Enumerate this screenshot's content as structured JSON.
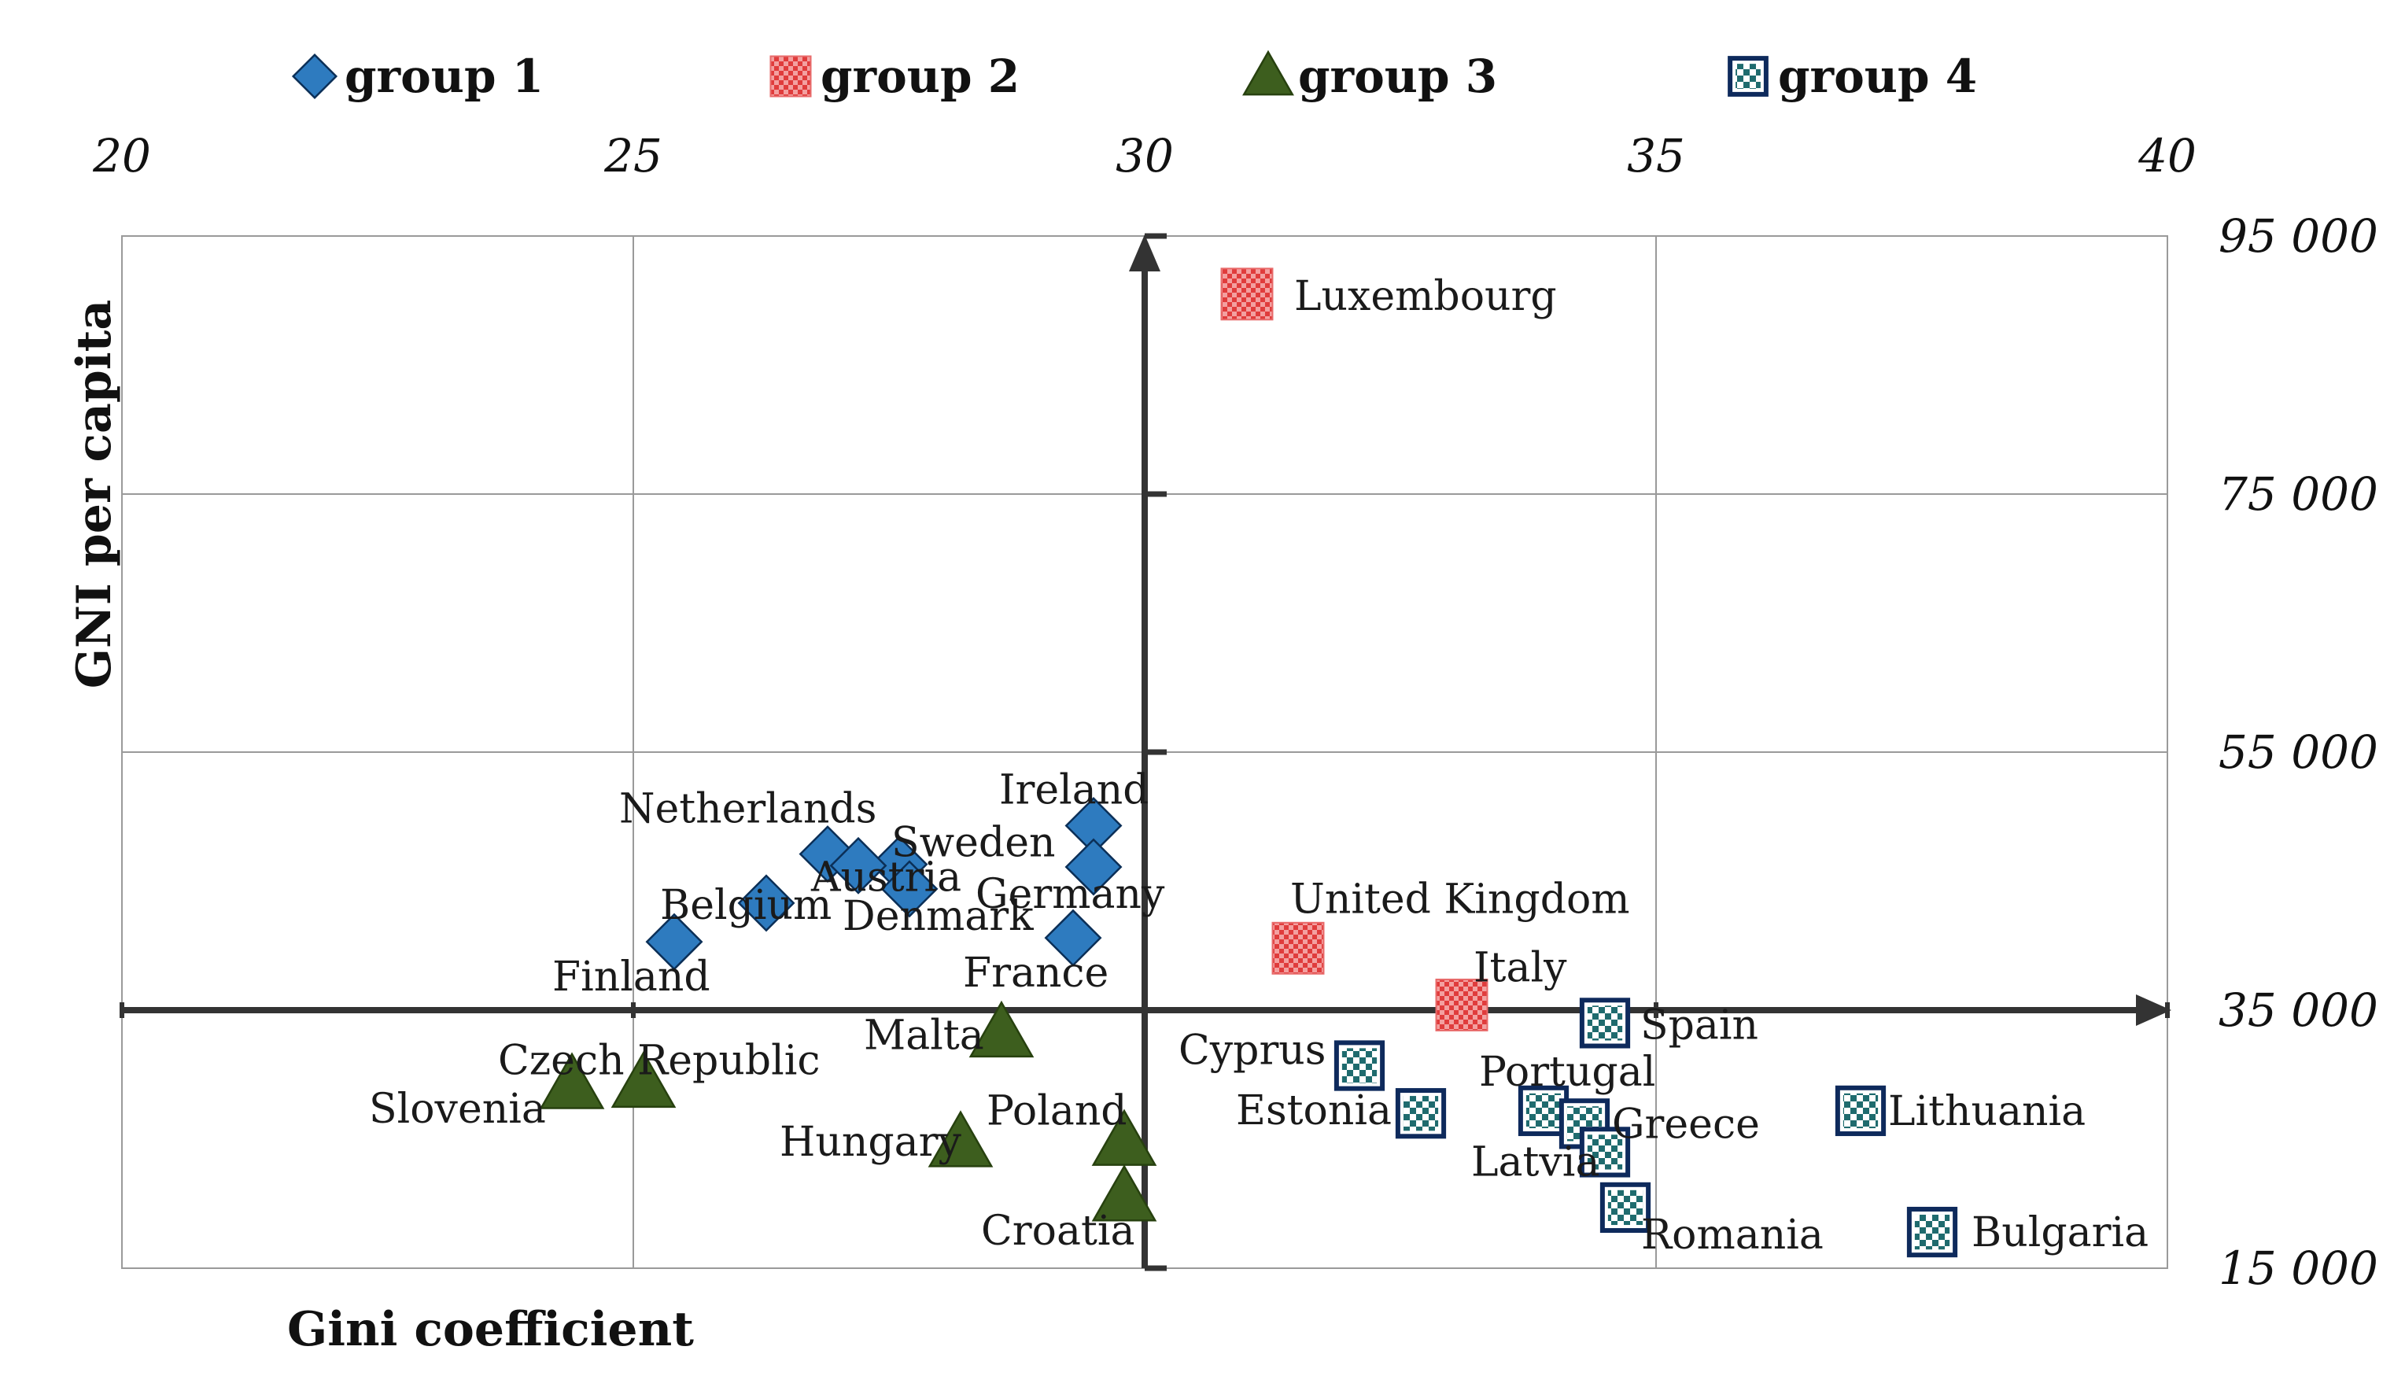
{
  "chart_data": {
    "type": "scatter",
    "xlabel": "Gini coefficient",
    "ylabel": "GNI per capita",
    "xlim": [
      20,
      40
    ],
    "ylim": [
      15000,
      95000
    ],
    "x_ticks": [
      "20",
      "25",
      "30",
      "35",
      "40"
    ],
    "y_ticks": [
      "95 000",
      "75 000",
      "55 000",
      "35 000"
    ],
    "y_tick_values": [
      95000,
      75000,
      55000,
      35000
    ],
    "y_bottom_tick": "15 000",
    "x_ticks_position": "top",
    "y_ticks_position": "right",
    "grid": true,
    "quadrant_axes": {
      "x": 30,
      "y": 35000
    },
    "legend_position": "top",
    "series": [
      {
        "name": "group 1",
        "marker": "diamond",
        "color": "#2e7bbf",
        "points": [
          {
            "label": "Ireland",
            "x": 29.5,
            "y": 49300
          },
          {
            "label": "Netherlands",
            "x": 26.9,
            "y": 47100
          },
          {
            "label": "Sweden",
            "x": 27.6,
            "y": 46300
          },
          {
            "label": "Austria",
            "x": 27.2,
            "y": 46200
          },
          {
            "label": "Germany",
            "x": 29.5,
            "y": 46100
          },
          {
            "label": "Denmark",
            "x": 27.7,
            "y": 44400
          },
          {
            "label": "Belgium",
            "x": 26.3,
            "y": 43300
          },
          {
            "label": "France",
            "x": 29.3,
            "y": 40600
          },
          {
            "label": "Finland",
            "x": 25.4,
            "y": 40300
          }
        ]
      },
      {
        "name": "group 2",
        "marker": "checker-red",
        "color": "#e05050",
        "points": [
          {
            "label": "Luxembourg",
            "x": 31.0,
            "y": 90500
          },
          {
            "label": "United Kingdom",
            "x": 31.5,
            "y": 39800
          },
          {
            "label": "Italy",
            "x": 33.1,
            "y": 35400
          }
        ]
      },
      {
        "name": "group 3",
        "marker": "triangle",
        "color": "#3d5e1e",
        "points": [
          {
            "label": "Malta",
            "x": 28.6,
            "y": 33200
          },
          {
            "label": "Czech Republic",
            "x": 25.1,
            "y": 29300
          },
          {
            "label": "Slovenia",
            "x": 24.4,
            "y": 29200
          },
          {
            "label": "Hungary",
            "x": 28.2,
            "y": 24700
          },
          {
            "label": "Poland",
            "x": 29.8,
            "y": 24800
          },
          {
            "label": "Croatia",
            "x": 29.8,
            "y": 20500
          }
        ]
      },
      {
        "name": "group 4",
        "marker": "checker-square",
        "color": "#0e2a5c",
        "points": [
          {
            "label": "Spain",
            "x": 34.5,
            "y": 34000
          },
          {
            "label": "Cyprus",
            "x": 32.1,
            "y": 30700
          },
          {
            "label": "Estonia",
            "x": 32.7,
            "y": 27000
          },
          {
            "label": "Portugal",
            "x": 33.9,
            "y": 27200
          },
          {
            "label": "Greece",
            "x": 34.3,
            "y": 26200
          },
          {
            "label": "Latvia",
            "x": 34.5,
            "y": 24000
          },
          {
            "label": "Lithuania",
            "x": 37.0,
            "y": 27200
          },
          {
            "label": "Romania",
            "x": 34.7,
            "y": 19700
          },
          {
            "label": "Bulgaria",
            "x": 37.7,
            "y": 17800
          }
        ]
      }
    ]
  }
}
